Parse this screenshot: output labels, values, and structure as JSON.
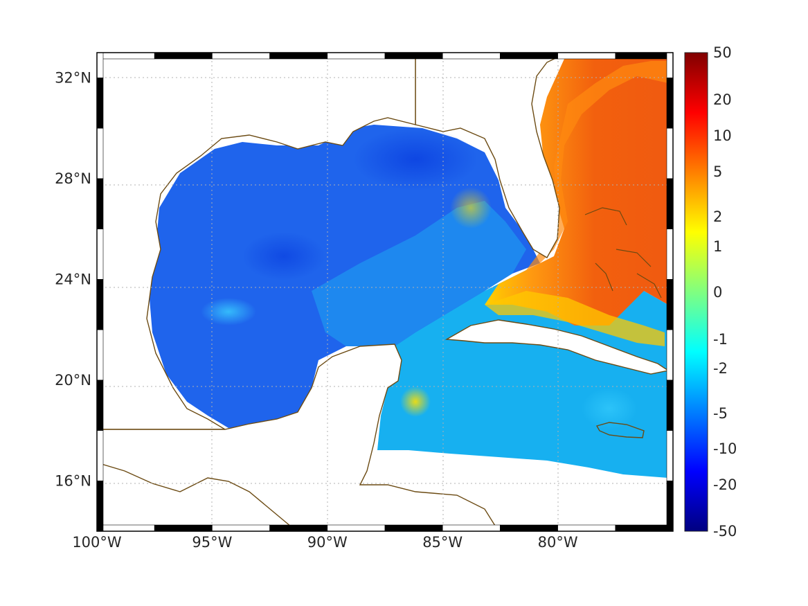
{
  "map": {
    "lon_range": [
      -100,
      -75
    ],
    "lat_range": [
      14,
      33
    ],
    "lon_ticks": [
      {
        "value": -100,
        "label": "100°W"
      },
      {
        "value": -95,
        "label": "95°W"
      },
      {
        "value": -90,
        "label": "90°W"
      },
      {
        "value": -85,
        "label": "85°W"
      },
      {
        "value": -80,
        "label": "80°W"
      }
    ],
    "lat_ticks": [
      {
        "value": 16,
        "label": "16°N"
      },
      {
        "value": 20,
        "label": "20°N"
      },
      {
        "value": 24,
        "label": "24°N"
      },
      {
        "value": 28,
        "label": "28°N"
      },
      {
        "value": 32,
        "label": "32°N"
      }
    ],
    "grid": true,
    "coastline_color": "#6b4a12"
  },
  "colorbar": {
    "placement": "right",
    "ticks": [
      "50",
      "20",
      "10",
      "5",
      "2",
      "1",
      "0",
      "-1",
      "-2",
      "-5",
      "-10",
      "-20",
      "-50"
    ],
    "colormap": "jet",
    "colors": [
      "#800000",
      "#ff0000",
      "#ff8000",
      "#ffff00",
      "#80ff80",
      "#00ffff",
      "#0080ff",
      "#0000ff",
      "#000080"
    ]
  },
  "regions": {
    "gulf_color": "#1f64ec",
    "caribbean_color": "#17b0f0",
    "atlantic_color": "#f25a10"
  }
}
